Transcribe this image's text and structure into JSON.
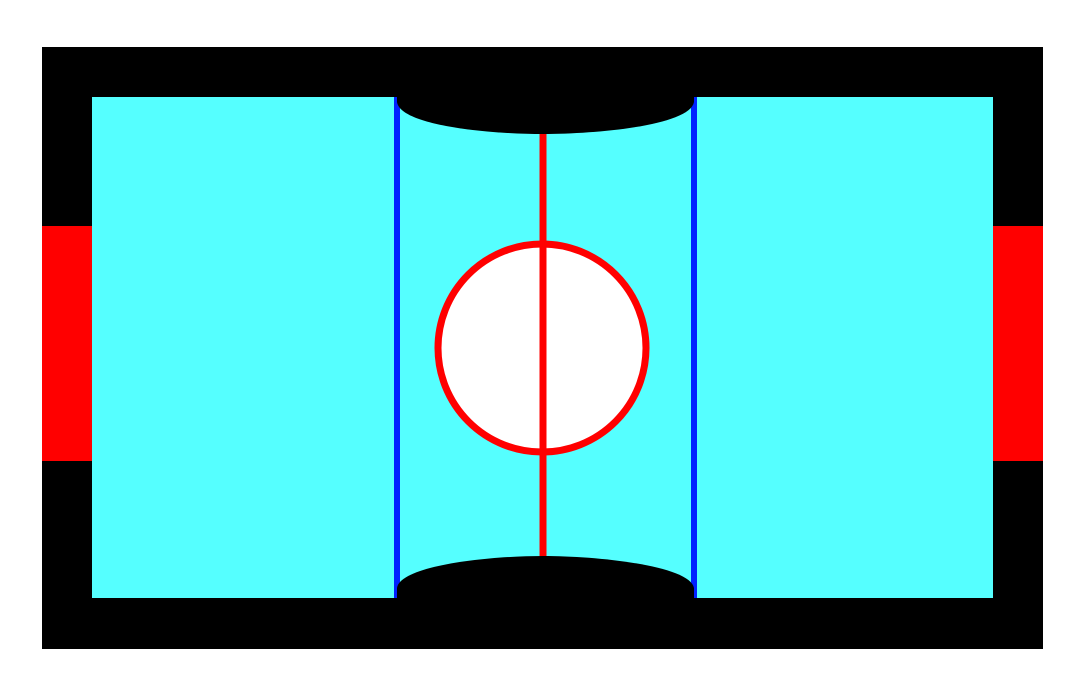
{
  "game": {
    "board": "air-hockey-table",
    "colors": {
      "background": "#ffffff",
      "frame": "#000000",
      "playfield": "#55ffff",
      "goal": "#ff0000",
      "blue_line": "#0022ff",
      "center_line": "#ff0000",
      "center_circle_stroke": "#ff0000",
      "center_circle_fill": "#ffffff",
      "side_pocket": "#000000"
    },
    "elements": [
      "outer-frame",
      "playfield",
      "left-goal",
      "right-goal",
      "left-blue-line",
      "right-blue-line",
      "center-red-line",
      "center-circle",
      "top-pocket",
      "bottom-pocket"
    ]
  }
}
